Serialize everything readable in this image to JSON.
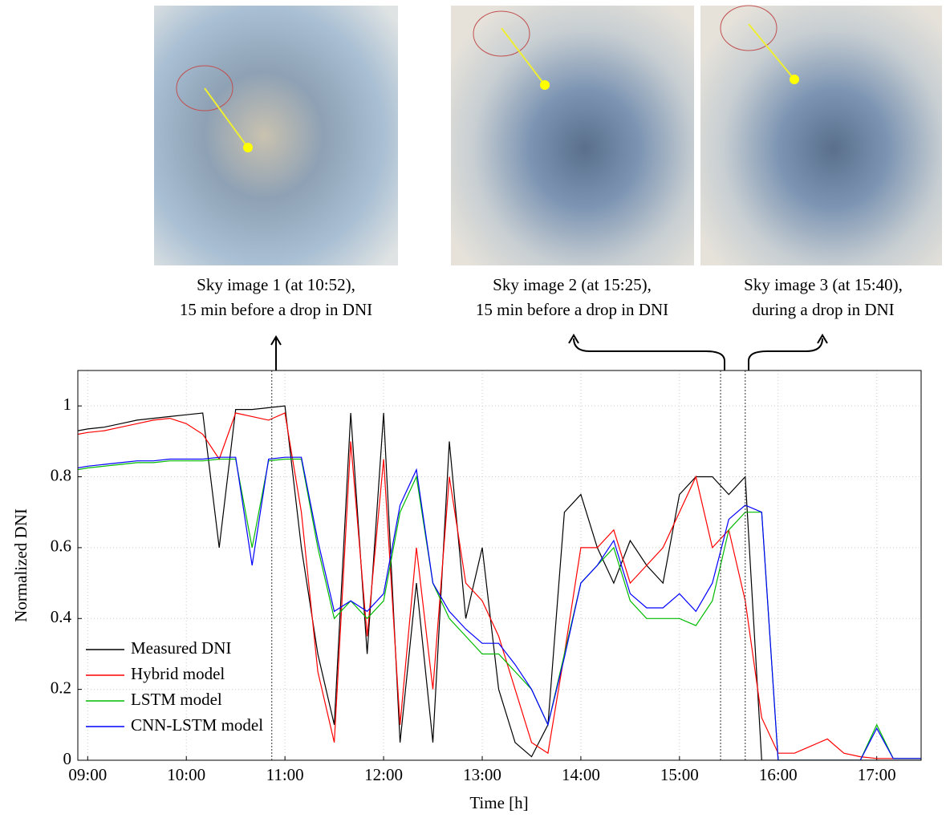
{
  "sky_images": [
    {
      "caption": [
        "Sky image 1 (at 10:52),",
        "15 min before a drop in DNI"
      ]
    },
    {
      "caption": [
        "Sky image 2 (at 15:25),",
        "15 min before a drop in DNI"
      ]
    },
    {
      "caption": [
        "Sky image 3 (at 15:40),",
        "during a drop in DNI"
      ]
    }
  ],
  "chart_data": {
    "type": "line",
    "xlabel": "Time [h]",
    "ylabel": "Normalized DNI",
    "x": [
      "08:54",
      "09:00",
      "09:10",
      "09:20",
      "09:30",
      "09:40",
      "09:50",
      "10:00",
      "10:10",
      "10:20",
      "10:30",
      "10:40",
      "10:50",
      "11:00",
      "11:10",
      "11:20",
      "11:30",
      "11:40",
      "11:50",
      "12:00",
      "12:10",
      "12:20",
      "12:30",
      "12:40",
      "12:50",
      "13:00",
      "13:10",
      "13:20",
      "13:30",
      "13:40",
      "13:50",
      "14:00",
      "14:10",
      "14:20",
      "14:30",
      "14:40",
      "14:50",
      "15:00",
      "15:10",
      "15:20",
      "15:30",
      "15:40",
      "15:50",
      "16:00",
      "16:10",
      "16:20",
      "16:30",
      "16:40",
      "16:50",
      "17:00",
      "17:10",
      "17:20",
      "17:27"
    ],
    "series": [
      {
        "name": "Measured DNI",
        "color": "#000000",
        "values": [
          0.93,
          0.935,
          0.94,
          0.95,
          0.96,
          0.965,
          0.97,
          0.975,
          0.98,
          0.6,
          0.99,
          0.99,
          0.995,
          1.0,
          0.6,
          0.3,
          0.1,
          0.98,
          0.3,
          0.98,
          0.05,
          0.5,
          0.05,
          0.9,
          0.4,
          0.6,
          0.2,
          0.05,
          0.01,
          0.1,
          0.7,
          0.75,
          0.6,
          0.5,
          0.62,
          0.55,
          0.5,
          0.75,
          0.8,
          0.8,
          0.75,
          0.8,
          0,
          0,
          0,
          0,
          0,
          0,
          0,
          0,
          0,
          0,
          0
        ]
      },
      {
        "name": "Hybrid model",
        "color": "#ff0000",
        "values": [
          0.92,
          0.925,
          0.93,
          0.94,
          0.95,
          0.96,
          0.965,
          0.95,
          0.92,
          0.85,
          0.98,
          0.97,
          0.96,
          0.98,
          0.7,
          0.25,
          0.05,
          0.9,
          0.35,
          0.85,
          0.1,
          0.6,
          0.2,
          0.8,
          0.5,
          0.45,
          0.35,
          0.2,
          0.05,
          0.02,
          0.3,
          0.6,
          0.6,
          0.65,
          0.5,
          0.55,
          0.6,
          0.7,
          0.8,
          0.6,
          0.65,
          0.45,
          0.12,
          0.02,
          0.02,
          0.04,
          0.06,
          0.02,
          0.01,
          0.005,
          0.005,
          0.005,
          0.005
        ]
      },
      {
        "name": "LSTM model",
        "color": "#00bb00",
        "values": [
          0.82,
          0.825,
          0.83,
          0.835,
          0.84,
          0.84,
          0.845,
          0.845,
          0.845,
          0.85,
          0.85,
          0.6,
          0.845,
          0.85,
          0.85,
          0.6,
          0.4,
          0.45,
          0.4,
          0.45,
          0.7,
          0.8,
          0.5,
          0.4,
          0.35,
          0.3,
          0.3,
          0.25,
          0.2,
          0.1,
          0.3,
          0.5,
          0.55,
          0.6,
          0.45,
          0.4,
          0.4,
          0.4,
          0.38,
          0.45,
          0.65,
          0.7,
          0.7,
          0,
          0,
          0,
          0,
          0,
          0,
          0.1,
          0.005,
          0.005,
          0.005
        ]
      },
      {
        "name": "CNN-LSTM model",
        "color": "#0000ff",
        "values": [
          0.825,
          0.83,
          0.835,
          0.84,
          0.845,
          0.845,
          0.85,
          0.85,
          0.85,
          0.855,
          0.855,
          0.55,
          0.85,
          0.855,
          0.855,
          0.62,
          0.42,
          0.45,
          0.42,
          0.47,
          0.72,
          0.82,
          0.5,
          0.42,
          0.37,
          0.33,
          0.33,
          0.27,
          0.2,
          0.1,
          0.29,
          0.5,
          0.55,
          0.62,
          0.47,
          0.43,
          0.43,
          0.47,
          0.42,
          0.5,
          0.68,
          0.72,
          0.7,
          0,
          0,
          0,
          0,
          0,
          0,
          0.09,
          0.005,
          0.005,
          0.005
        ]
      }
    ],
    "xlim": [
      "08:54",
      "17:27"
    ],
    "xticks": [
      "09:00",
      "10:00",
      "11:00",
      "12:00",
      "13:00",
      "14:00",
      "15:00",
      "16:00",
      "17:00"
    ],
    "ylim": [
      0,
      1.1
    ],
    "yticks": [
      0,
      0.2,
      0.4,
      0.6,
      0.8,
      1
    ],
    "grid": true,
    "legend": "lower-left",
    "vlines": [
      "10:52",
      "15:25",
      "15:40"
    ]
  }
}
